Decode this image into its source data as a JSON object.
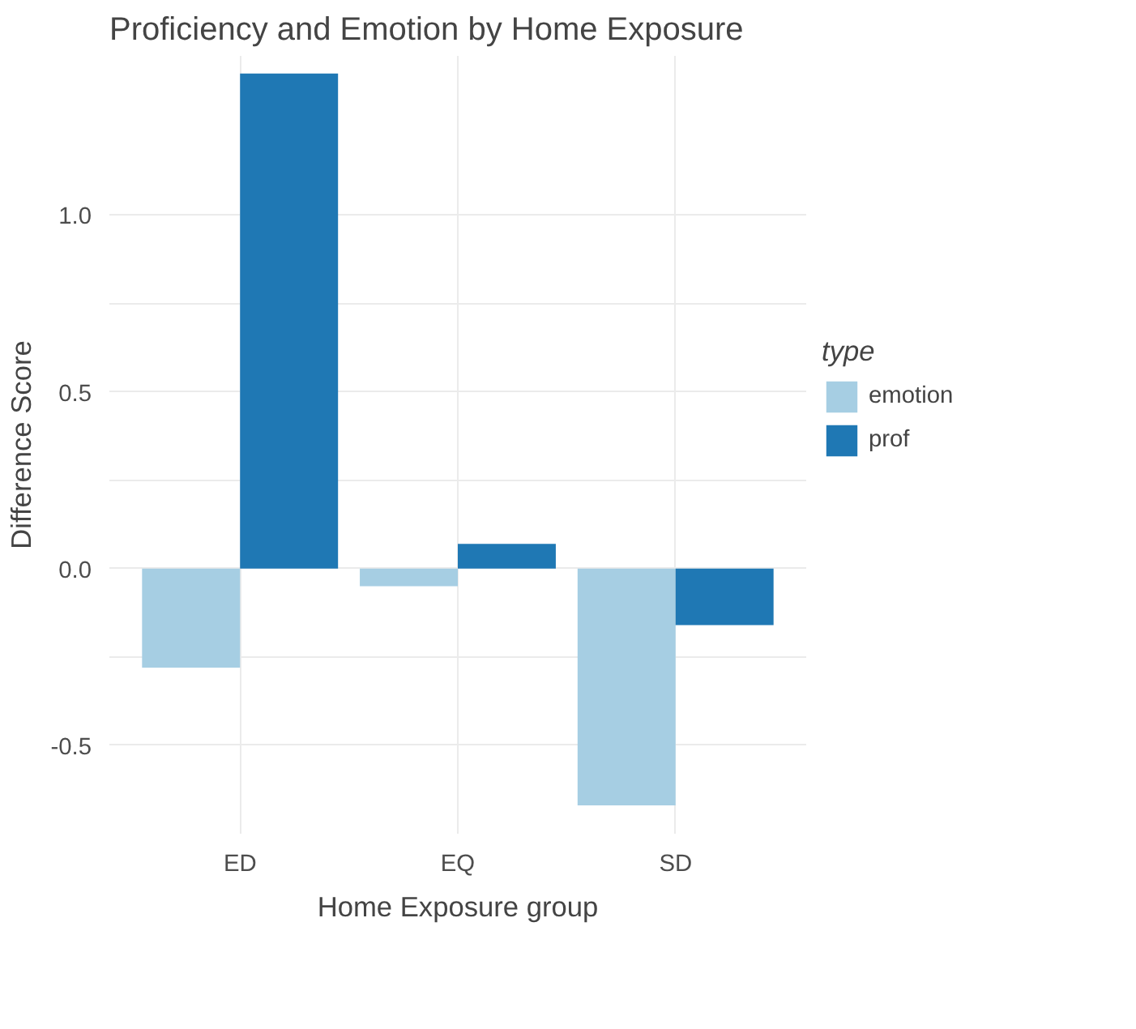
{
  "chart_data": {
    "type": "bar",
    "title": "Proficiency and Emotion by Home Exposure",
    "xlabel": "Home Exposure group",
    "ylabel": "Difference Score",
    "legend_title": "type",
    "categories": [
      "ED",
      "EQ",
      "SD"
    ],
    "series": [
      {
        "name": "emotion",
        "color": "#a6cee3",
        "values": [
          -0.28,
          -0.05,
          -0.67
        ]
      },
      {
        "name": "prof",
        "color": "#1f78b4",
        "values": [
          1.4,
          0.07,
          -0.16
        ]
      }
    ],
    "ylim": [
      -0.75,
      1.45
    ],
    "yticks": [
      {
        "value": -0.5,
        "label": "-0.5"
      },
      {
        "value": -0.25,
        "label": null
      },
      {
        "value": 0,
        "label": "0.0"
      },
      {
        "value": 0.25,
        "label": null
      },
      {
        "value": 0.5,
        "label": "0.5"
      },
      {
        "value": 0.75,
        "label": null
      },
      {
        "value": 1,
        "label": "1.0"
      }
    ],
    "grid": true,
    "legend": "right"
  }
}
